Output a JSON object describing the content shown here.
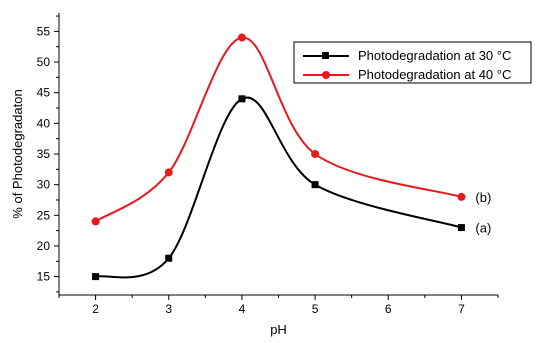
{
  "chart_data": {
    "type": "line",
    "xlabel": "pH",
    "ylabel": "% of Photodegradaton",
    "xlim": [
      1.5,
      7.5
    ],
    "ylim": [
      12,
      58
    ],
    "xticks": [
      2,
      3,
      4,
      5,
      6,
      7
    ],
    "yticks": [
      15,
      20,
      25,
      30,
      35,
      40,
      45,
      50,
      55
    ],
    "grid": false,
    "legend_position": "top-right",
    "series": [
      {
        "name": "Photodegradation at 30 °C",
        "curve_label": "(a)",
        "color": "#000000",
        "marker": "square",
        "x": [
          2,
          3,
          4,
          5,
          7
        ],
        "y": [
          15,
          18,
          44,
          30,
          23
        ]
      },
      {
        "name": "Photodegradation at 40 °C",
        "curve_label": "(b)",
        "color": "#e8191c",
        "marker": "circle",
        "x": [
          2,
          3,
          4,
          5,
          7
        ],
        "y": [
          24,
          32,
          54,
          35,
          28
        ]
      }
    ]
  }
}
